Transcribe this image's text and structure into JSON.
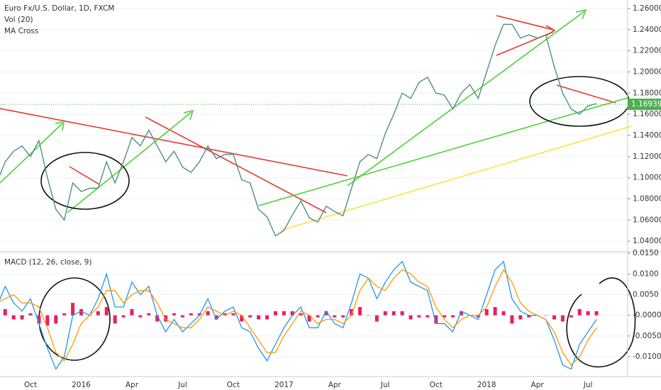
{
  "chart_data": [
    {
      "type": "line",
      "title": "Euro Fx/U.S. Dollar, 1D, FXCM",
      "indicators": [
        "Vol (20)",
        "MA Cross"
      ],
      "color": "#4f8f86",
      "grid": true,
      "values": [
        1.095,
        1.115,
        1.125,
        1.13,
        1.12,
        1.135,
        1.1,
        1.07,
        1.06,
        1.095,
        1.087,
        1.09,
        1.09,
        1.115,
        1.095,
        1.115,
        1.138,
        1.13,
        1.145,
        1.13,
        1.115,
        1.125,
        1.11,
        1.105,
        1.115,
        1.13,
        1.118,
        1.122,
        1.122,
        1.098,
        1.095,
        1.07,
        1.063,
        1.045,
        1.05,
        1.065,
        1.078,
        1.062,
        1.058,
        1.073,
        1.068,
        1.064,
        1.09,
        1.115,
        1.122,
        1.118,
        1.142,
        1.16,
        1.18,
        1.175,
        1.19,
        1.195,
        1.18,
        1.178,
        1.165,
        1.18,
        1.188,
        1.175,
        1.2,
        1.225,
        1.245,
        1.245,
        1.232,
        1.235,
        1.232,
        1.235,
        1.205,
        1.18,
        1.165,
        1.16,
        1.168,
        1.17
      ],
      "last_price": 1.16939,
      "last_price_color": "#4caf50",
      "ylim": [
        1.03,
        1.268
      ],
      "yticks": [
        {
          "value": 1.26,
          "label": "1.26000"
        },
        {
          "value": 1.24,
          "label": "1.24000"
        },
        {
          "value": 1.22,
          "label": "1.22000"
        },
        {
          "value": 1.2,
          "label": "1.20000"
        },
        {
          "value": 1.18,
          "label": "1.18000"
        },
        {
          "value": 1.16,
          "label": "1.16000"
        },
        {
          "value": 1.14,
          "label": "1.14000"
        },
        {
          "value": 1.12,
          "label": "1.12000"
        },
        {
          "value": 1.1,
          "label": "1.10000"
        },
        {
          "value": 1.08,
          "label": "1.08000"
        },
        {
          "value": 1.06,
          "label": "1.06000"
        },
        {
          "value": 1.04,
          "label": "1.04000"
        }
      ]
    },
    {
      "type": "macd",
      "title": "MACD (12, 26, close, 9)",
      "grid": true,
      "categories": [
        null,
        null,
        null,
        null,
        "Oct",
        null,
        null,
        null,
        null,
        null,
        "2016",
        null,
        null,
        null,
        null,
        null,
        "Apr",
        null,
        null,
        null,
        null,
        null,
        "Jul",
        null,
        null,
        null,
        null,
        null,
        "Oct",
        null,
        null,
        null,
        null,
        null,
        "2017",
        null,
        null,
        null,
        null,
        null,
        "Apr",
        null,
        null,
        null,
        null,
        null,
        "Jul",
        null,
        null,
        null,
        null,
        null,
        "Oct",
        null,
        null,
        null,
        null,
        null,
        "2018",
        null,
        null,
        null,
        null,
        null,
        "Apr",
        null,
        null,
        null,
        null,
        null,
        "Jul",
        null
      ],
      "series": [
        {
          "name": "Histogram",
          "kind": "bar",
          "color": "#e91e63",
          "values": [
            -0.0005,
            0.0015,
            -0.001,
            -0.001,
            0.0005,
            -0.002,
            -0.0025,
            -0.002,
            0.0005,
            0.003,
            0.0015,
            0,
            0.001,
            0.002,
            -0.002,
            -0.0005,
            0.0015,
            -0.0005,
            0.0005,
            -0.0015,
            -0.0015,
            0.0005,
            -0.0005,
            0.0005,
            0.0005,
            0.001,
            -0.001,
            0.0005,
            0.0005,
            -0.0015,
            -0.0005,
            -0.001,
            -0.001,
            0.001,
            0.001,
            0.001,
            0.0005,
            -0.0015,
            -0.0005,
            0.001,
            -0.0005,
            -0.0005,
            0.0015,
            0.002,
            0,
            -0.0015,
            0.001,
            0.001,
            0.001,
            -0.001,
            -0.0005,
            -0.0005,
            -0.002,
            -0.0005,
            -0.0005,
            0.001,
            0,
            -0.0005,
            0.0015,
            0.002,
            0.001,
            -0.002,
            -0.001,
            -0.0005,
            0,
            0,
            -0.001,
            -0.0015,
            -0.0005,
            0.0015,
            0.001,
            0.001
          ]
        },
        {
          "name": "MACD",
          "kind": "line",
          "color": "#2196f3",
          "values": [
            0.002,
            0.007,
            0.003,
            0.001,
            0.004,
            -0.002,
            -0.008,
            -0.013,
            -0.01,
            0.0,
            0.001,
            0.0,
            0.004,
            0.01,
            0.002,
            0.002,
            0.008,
            0.005,
            0.007,
            0.0,
            -0.004,
            -0.001,
            -0.004,
            -0.002,
            0.0,
            0.004,
            -0.001,
            0.001,
            0.002,
            -0.003,
            -0.004,
            -0.008,
            -0.011,
            -0.007,
            -0.003,
            0.0,
            0.002,
            -0.003,
            -0.003,
            0.001,
            -0.002,
            -0.003,
            0.003,
            0.01,
            0.009,
            0.004,
            0.008,
            0.011,
            0.013,
            0.008,
            0.007,
            0.006,
            -0.002,
            -0.002,
            -0.004,
            0.001,
            0.0,
            -0.001,
            0.005,
            0.011,
            0.013,
            0.004,
            0.001,
            0.0,
            0.0,
            -0.001,
            -0.006,
            -0.012,
            -0.013,
            -0.007,
            -0.004,
            -0.001
          ]
        },
        {
          "name": "Signal",
          "kind": "line",
          "color": "#ff9800",
          "values": [
            0.003,
            0.004,
            0.005,
            0.003,
            0.003,
            0.002,
            -0.003,
            -0.009,
            -0.011,
            -0.007,
            -0.002,
            0.0,
            0.002,
            0.006,
            0.006,
            0.003,
            0.005,
            0.006,
            0.006,
            0.003,
            -0.001,
            -0.002,
            -0.003,
            -0.003,
            -0.001,
            0.002,
            0.001,
            0.0,
            0.001,
            0.0,
            -0.003,
            -0.006,
            -0.009,
            -0.009,
            -0.005,
            -0.002,
            0.001,
            0.0,
            -0.002,
            -0.001,
            -0.001,
            -0.002,
            0.0,
            0.006,
            0.009,
            0.007,
            0.006,
            0.009,
            0.011,
            0.01,
            0.008,
            0.007,
            0.002,
            -0.001,
            -0.003,
            -0.001,
            0.0,
            0.0,
            0.002,
            0.007,
            0.011,
            0.008,
            0.003,
            0.001,
            0.0,
            -0.001,
            -0.004,
            -0.009,
            -0.012,
            -0.01,
            -0.006,
            -0.003
          ]
        }
      ],
      "ylim": [
        -0.0148,
        0.0152
      ],
      "yticks": [
        {
          "value": 0.015,
          "label": "0.0150"
        },
        {
          "value": 0.01,
          "label": "0.0100"
        },
        {
          "value": 0.005,
          "label": "0.0050"
        },
        {
          "value": 0,
          "label": "-0.0000"
        },
        {
          "value": -0.005,
          "label": "-0.0050"
        },
        {
          "value": -0.01,
          "label": "-0.0100"
        }
      ]
    }
  ]
}
